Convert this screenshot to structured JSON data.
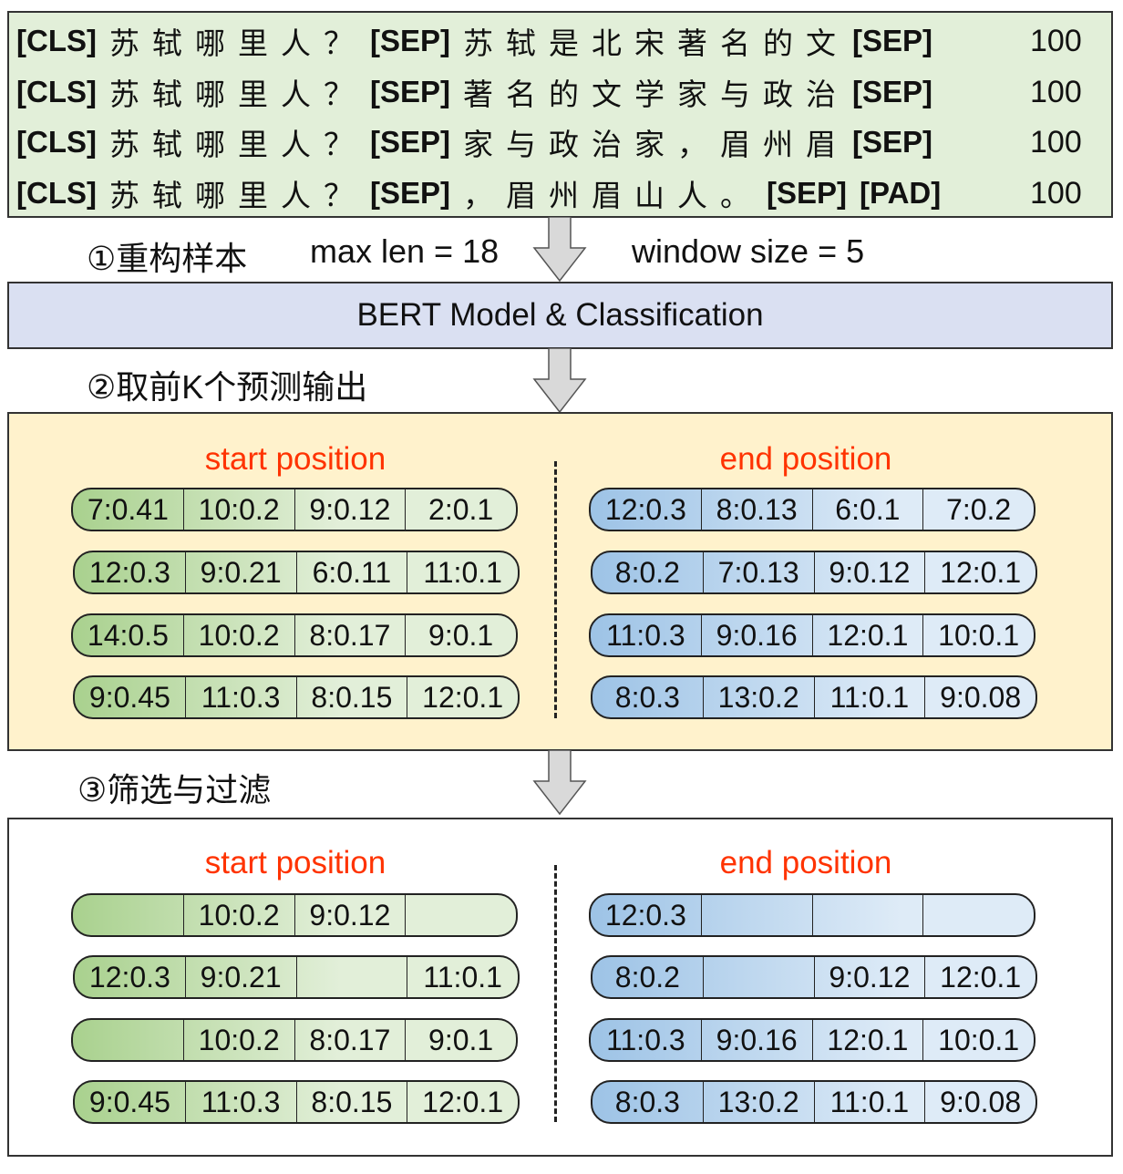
{
  "input_samples": [
    {
      "segments": [
        {
          "t": "[CLS]",
          "b": true
        },
        {
          "t": "苏轼哪里人？",
          "b": false
        },
        {
          "t": "[SEP]",
          "b": true
        },
        {
          "t": "苏轼是北宋著名的文",
          "b": false
        },
        {
          "t": "[SEP]",
          "b": true
        }
      ],
      "score": "100"
    },
    {
      "segments": [
        {
          "t": "[CLS]",
          "b": true
        },
        {
          "t": "苏轼哪里人？",
          "b": false
        },
        {
          "t": "[SEP]",
          "b": true
        },
        {
          "t": "著名的文学家与政治",
          "b": false
        },
        {
          "t": "[SEP]",
          "b": true
        }
      ],
      "score": "100"
    },
    {
      "segments": [
        {
          "t": "[CLS]",
          "b": true
        },
        {
          "t": "苏轼哪里人？",
          "b": false
        },
        {
          "t": "[SEP]",
          "b": true
        },
        {
          "t": "家与政治家，眉州眉",
          "b": false
        },
        {
          "t": "[SEP]",
          "b": true
        }
      ],
      "score": "100"
    },
    {
      "segments": [
        {
          "t": "[CLS]",
          "b": true
        },
        {
          "t": "苏轼哪里人？",
          "b": false
        },
        {
          "t": "[SEP]",
          "b": true
        },
        {
          "t": "，眉州眉山人。",
          "b": false
        },
        {
          "t": "[SEP]",
          "b": true
        },
        {
          "t": "[PAD]",
          "b": true
        }
      ],
      "score": "100"
    }
  ],
  "step1": {
    "label": "①重构样本",
    "max_len": "max len = 18",
    "window_size": "window size = 5"
  },
  "model": {
    "label": "BERT Model & Classification"
  },
  "step2": {
    "label": "②取前K个预测输出"
  },
  "step3": {
    "label": "③筛选与过滤"
  },
  "topk_panel": {
    "start_title": "start position",
    "end_title": "end position",
    "start": [
      [
        "7:0.41",
        "10:0.2",
        "9:0.12",
        "2:0.1"
      ],
      [
        "12:0.3",
        "9:0.21",
        "6:0.11",
        "11:0.1"
      ],
      [
        "14:0.5",
        "10:0.2",
        "8:0.17",
        "9:0.1"
      ],
      [
        "9:0.45",
        "11:0.3",
        "8:0.15",
        "12:0.1"
      ]
    ],
    "end": [
      [
        "12:0.3",
        "8:0.13",
        "6:0.1",
        "7:0.2"
      ],
      [
        "8:0.2",
        "7:0.13",
        "9:0.12",
        "12:0.1"
      ],
      [
        "11:0.3",
        "9:0.16",
        "12:0.1",
        "10:0.1"
      ],
      [
        "8:0.3",
        "13:0.2",
        "11:0.1",
        "9:0.08"
      ]
    ]
  },
  "filter_panel": {
    "start_title": "start position",
    "end_title": "end position",
    "start": [
      [
        "",
        "10:0.2",
        "9:0.12",
        ""
      ],
      [
        "12:0.3",
        "9:0.21",
        "",
        "11:0.1"
      ],
      [
        "",
        "10:0.2",
        "8:0.17",
        "9:0.1"
      ],
      [
        "9:0.45",
        "11:0.3",
        "8:0.15",
        "12:0.1"
      ]
    ],
    "end": [
      [
        "12:0.3",
        "",
        "",
        ""
      ],
      [
        "8:0.2",
        "",
        "9:0.12",
        "12:0.1"
      ],
      [
        "11:0.3",
        "9:0.16",
        "12:0.1",
        "10:0.1"
      ],
      [
        "8:0.3",
        "13:0.2",
        "11:0.1",
        "9:0.08"
      ]
    ]
  },
  "colors": {
    "input_bg": "#e2efd9",
    "model_bg": "#dae0f2",
    "topk_bg": "#fff2cc",
    "title_red": "#ff3300",
    "green_dark": "#a9d18e",
    "blue_dark": "#9dc3e6"
  }
}
